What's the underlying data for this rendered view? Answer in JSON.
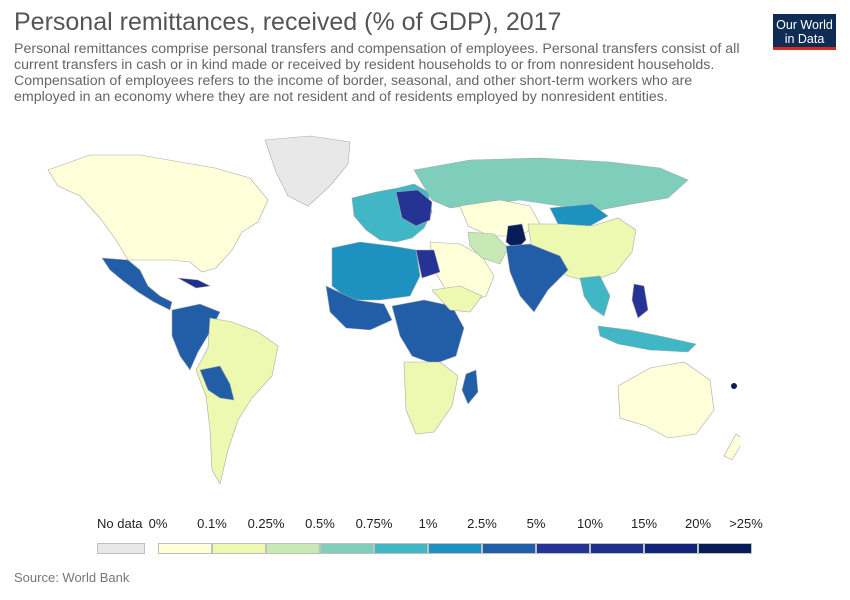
{
  "header": {
    "title": "Personal remittances, received (% of GDP), 2017",
    "subtitle": "Personal remittances comprise personal transfers and compensation of employees. Personal transfers consist of all current transfers in cash or in kind made or received by resident households to or from nonresident households. Compensation of employees refers to the income of border, seasonal, and other short-term workers who are employed in an economy where they are not resident and of residents employed by nonresident entities."
  },
  "logo": {
    "line1": "Our World",
    "line2": "in Data"
  },
  "legend": {
    "no_data_label": "No data",
    "no_data_color": "#e8e8e8",
    "labels": [
      "0%",
      "0.1%",
      "0.25%",
      "0.5%",
      "0.75%",
      "1%",
      "2.5%",
      "5%",
      "10%",
      "15%",
      "20%",
      ">25%"
    ],
    "colors": [
      "#ffffd9",
      "#edf8b1",
      "#c7e9b4",
      "#7fcdbb",
      "#41b6c4",
      "#1d91c0",
      "#225ea8",
      "#253494",
      "#1f2f8c",
      "#122277",
      "#081d58"
    ]
  },
  "source": "Source: World Bank"
}
